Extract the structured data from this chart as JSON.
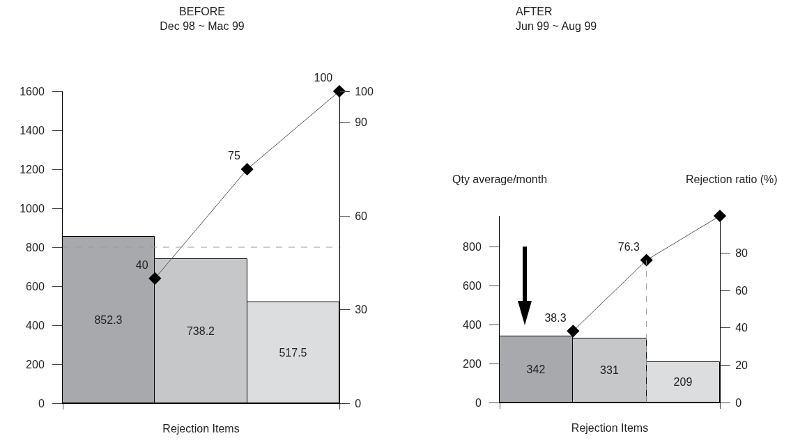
{
  "chart_data": [
    {
      "type": "bar",
      "title": "BEFORE",
      "subtitle": "Dec 98 ~ Mac 99",
      "xlabel": "Rejection Items",
      "categories": [
        null,
        null,
        null
      ],
      "ylim": [
        0,
        1600
      ],
      "yticks": [
        0,
        200,
        400,
        600,
        800,
        1000,
        1200,
        1400,
        1600
      ],
      "y2lim": [
        0,
        100
      ],
      "y2ticks": [
        0,
        30,
        60,
        90,
        100
      ],
      "grid": false,
      "marker": "diamond",
      "line_style": "solid",
      "series": [
        {
          "colors": [
            "#a7a9ac",
            "#c6c7c9",
            "#dcdddf"
          ],
          "values": [
            852.3,
            738.2,
            517.5
          ],
          "value_labels": [
            "852.3",
            "738.2",
            "517.5"
          ]
        },
        {
          "type": "line",
          "axis": "y2",
          "color": "#555555",
          "values": [
            40,
            75,
            100
          ],
          "value_labels": [
            "40",
            "75",
            "100"
          ]
        }
      ],
      "ref_lines": [
        {
          "axis": "y",
          "value": 800,
          "line_style": "dashed",
          "color": "#999999"
        }
      ]
    },
    {
      "type": "bar",
      "title": "AFTER",
      "subtitle": "Jun 99 ~ Aug 99",
      "xlabel": "Rejection Items",
      "ylabel": "Qty average/month",
      "y2label": "Rejection ratio (%)",
      "categories": [
        null,
        null,
        null
      ],
      "ylim": [
        0,
        960
      ],
      "yticks": [
        0,
        200,
        400,
        600,
        800
      ],
      "y2lim": [
        0,
        100
      ],
      "y2ticks": [
        0,
        20,
        40,
        60,
        80
      ],
      "grid": false,
      "marker": "diamond",
      "line_style": "solid",
      "series": [
        {
          "colors": [
            "#a7a9ac",
            "#c6c7c9",
            "#dcdddf"
          ],
          "values": [
            342,
            331,
            209
          ],
          "value_labels": [
            "342",
            "331",
            "209"
          ]
        },
        {
          "type": "line",
          "axis": "y2",
          "color": "#555555",
          "values": [
            38.3,
            76.3,
            100
          ],
          "value_labels": [
            "38.3",
            "76.3",
            null
          ]
        }
      ]
    }
  ]
}
